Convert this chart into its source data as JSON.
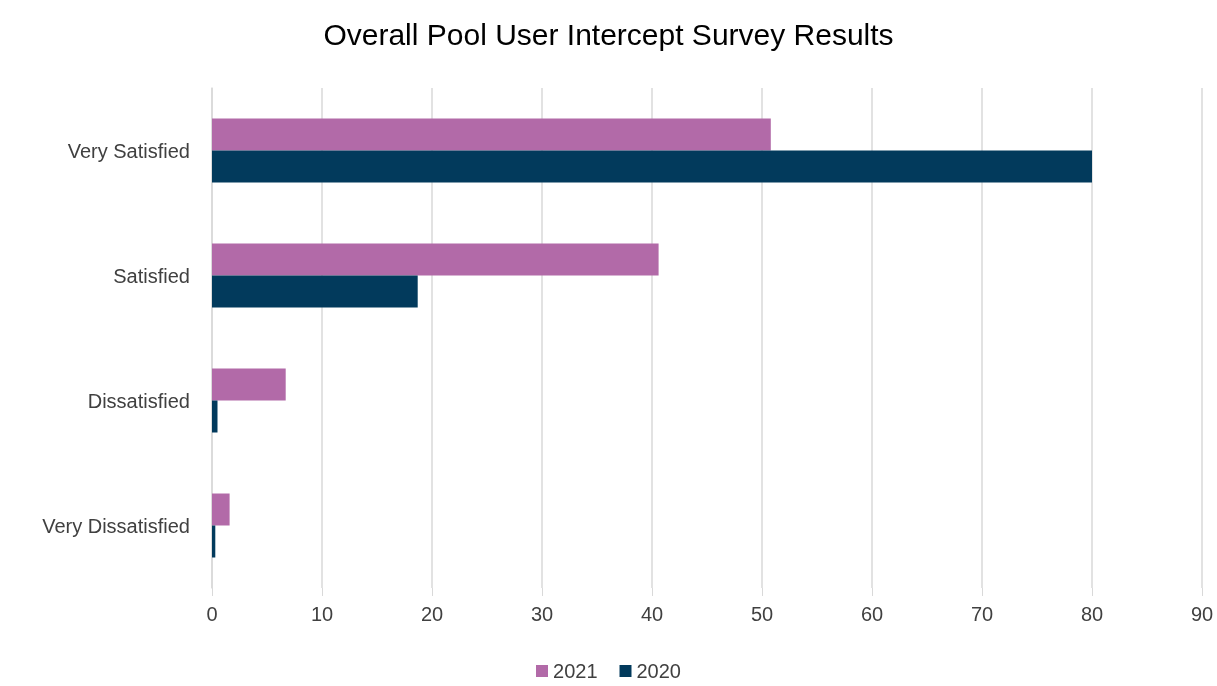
{
  "chart_data": {
    "type": "bar",
    "orientation": "horizontal",
    "title": "Overall Pool User Intercept Survey Results",
    "categories": [
      "Very Satisfied",
      "Satisfied",
      "Dissatisfied",
      "Very Dissatisfied"
    ],
    "series": [
      {
        "name": "2021",
        "color": "#b26aa8",
        "values": [
          50.8,
          40.6,
          6.7,
          1.6
        ]
      },
      {
        "name": "2020",
        "color": "#023a5c",
        "values": [
          80,
          18.7,
          0.5,
          0.3
        ]
      }
    ],
    "xlim": [
      0,
      90
    ],
    "xticks": [
      0,
      10,
      20,
      30,
      40,
      50,
      60,
      70,
      80,
      90
    ],
    "grid": "x",
    "legend": "bottom"
  }
}
